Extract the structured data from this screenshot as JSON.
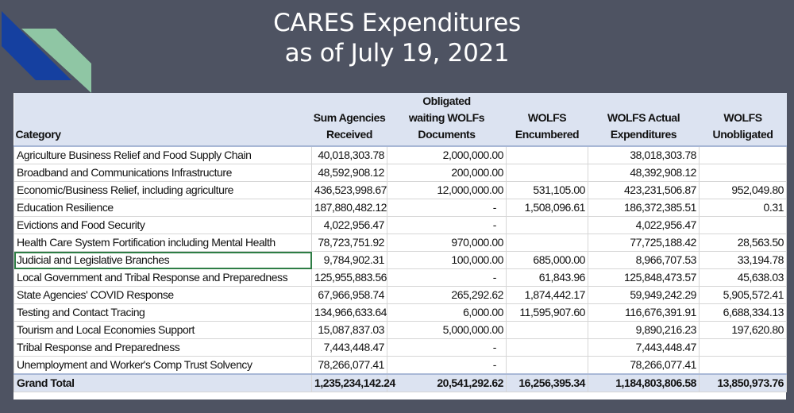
{
  "title": {
    "line1": "CARES Expenditures",
    "line2": "as of July 19, 2021"
  },
  "colors": {
    "background": "#4e5362",
    "logo_blue": "#1540a0",
    "logo_green": "#8fc6a4",
    "header_fill": "#dce3f1"
  },
  "table": {
    "headers": [
      {
        "l1": "",
        "l2": "Category"
      },
      {
        "l1": "Sum Agencies",
        "l2": "Received"
      },
      {
        "l0": "Obligated",
        "l1": "waiting WOLFs",
        "l2": "Documents"
      },
      {
        "l1": "WOLFS",
        "l2": "Encumbered"
      },
      {
        "l1": "WOLFS Actual",
        "l2": "Expenditures"
      },
      {
        "l1": "WOLFS",
        "l2": "Unobligated"
      }
    ],
    "rows": [
      [
        "Agriculture Business Relief and Food Supply Chain",
        "40,018,303.78",
        "2,000,000.00",
        "",
        "38,018,303.78",
        ""
      ],
      [
        "Broadband and Communications Infrastructure",
        "48,592,908.12",
        "200,000.00",
        "",
        "48,392,908.12",
        ""
      ],
      [
        "Economic/Business Relief, including agriculture",
        "436,523,998.67",
        "12,000,000.00",
        "531,105.00",
        "423,231,506.87",
        "952,049.80"
      ],
      [
        "Education Resilience",
        "187,880,482.12",
        "-",
        "1,508,096.61",
        "186,372,385.51",
        "0.31"
      ],
      [
        "Evictions and Food Security",
        "4,022,956.47",
        "-",
        "",
        "4,022,956.47",
        ""
      ],
      [
        "Health Care System Fortification including Mental Health",
        "78,723,751.92",
        "970,000.00",
        "",
        "77,725,188.42",
        "28,563.50"
      ],
      [
        "Judicial and Legislative Branches",
        "9,784,902.31",
        "100,000.00",
        "685,000.00",
        "8,966,707.53",
        "33,194.78"
      ],
      [
        "Local Government and Tribal Response and Preparedness",
        "125,955,883.56",
        "-",
        "61,843.96",
        "125,848,473.57",
        "45,638.03"
      ],
      [
        "State Agencies' COVID Response",
        "67,966,958.74",
        "265,292.62",
        "1,874,442.17",
        "59,949,242.29",
        "5,905,572.41"
      ],
      [
        "Testing and Contact Tracing",
        "134,966,633.64",
        "6,000.00",
        "11,595,907.60",
        "116,676,391.91",
        "6,688,334.13"
      ],
      [
        "Tourism and Local Economies Support",
        "15,087,837.03",
        "5,000,000.00",
        "",
        "9,890,216.23",
        "197,620.80"
      ],
      [
        "Tribal Response and Preparedness",
        "7,443,448.47",
        "-",
        "",
        "7,443,448.47",
        ""
      ],
      [
        "Unemployment and Worker's Comp Trust Solvency",
        "78,266,077.41",
        "-",
        "",
        "78,266,077.41",
        ""
      ]
    ],
    "total": [
      "Grand Total",
      "1,235,234,142.24",
      "20,541,292.62",
      "16,256,395.34",
      "1,184,803,806.58",
      "13,850,973.76"
    ]
  }
}
